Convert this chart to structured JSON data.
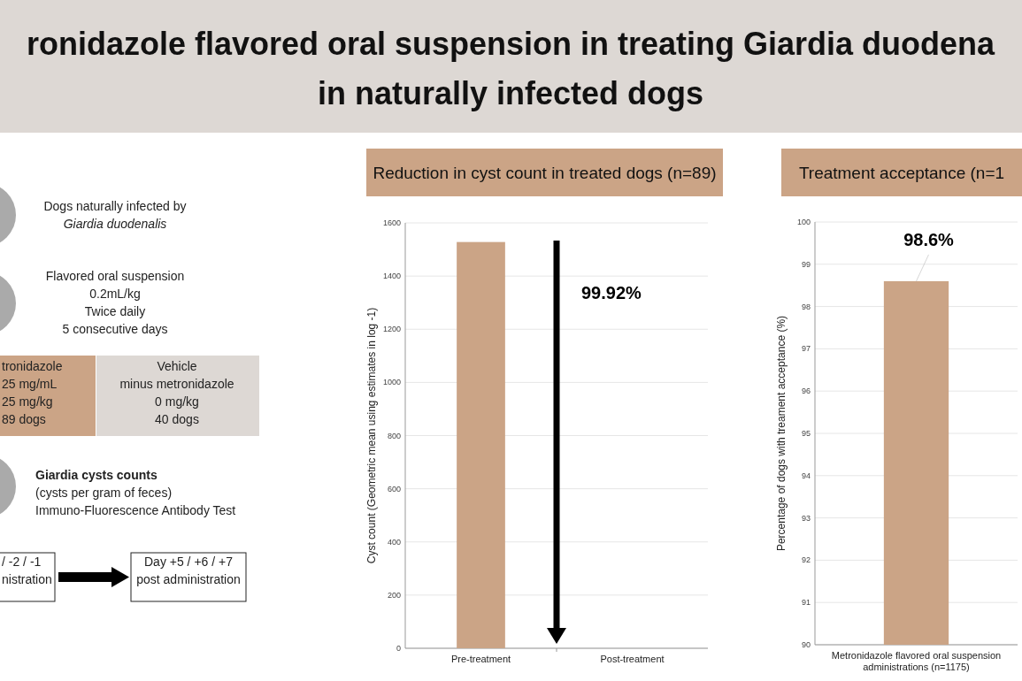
{
  "chart_data": [
    {
      "type": "other",
      "title": "ronidazole flavored oral suspension in treating Giardia duodena in naturally infected dogs",
      "annotations": [
        "Dogs naturally infected by\nGiardia duodenalis",
        "Flavored oral suspension\n0.2mL/kg\nTwice daily\n5 consecutive days",
        "tronidazole\n25 mg/mL\n25 mg/kg\n89 dogs",
        "Vehicle\nminus metronidazole\n0 mg/kg\n40 dogs",
        "Giardia cysts counts\n(cysts per gram of feces)\nImmuno-Fluorescence Antibody Test",
        "/ -2 / -1\nnistration",
        "Day +5 / +6 / +7\npost administration"
      ]
    },
    {
      "type": "bar",
      "title": "Reduction in cyst count in treated dogs (n=89)",
      "ylabel": "Cyst count (Geometric mean using estimates in log -1)",
      "categories": [
        "Pre-treatment",
        "Post-treatment"
      ],
      "values": [
        1528,
        null
      ],
      "color": "#cba486",
      "ylim": [
        0,
        1600
      ],
      "yticks": [
        0,
        200,
        400,
        600,
        800,
        1000,
        1200,
        1400,
        1600
      ],
      "grid": "y",
      "annotations": [
        "99.92%"
      ]
    },
    {
      "type": "bar",
      "title": "Treatment acceptance (n=1",
      "ylabel": "Percentage of dogs with treament acceptance (%)",
      "categories": [
        "Metronidazole flavored oral suspension administrations (n=1175)"
      ],
      "values": [
        98.6
      ],
      "value_labels": [
        "98.6%"
      ],
      "color": "#cba486",
      "ylim": [
        90,
        100
      ],
      "yticks": [
        90,
        91,
        92,
        93,
        94,
        95,
        96,
        97,
        98,
        99,
        100
      ],
      "grid": "y"
    }
  ]
}
